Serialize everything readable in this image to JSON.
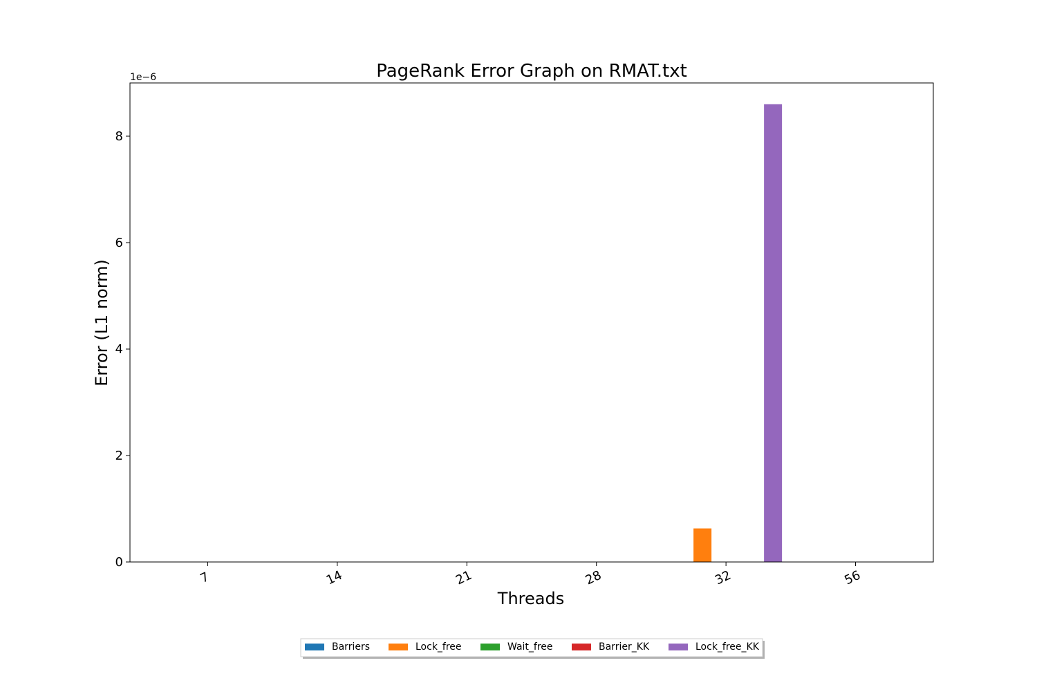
{
  "chart_data": {
    "type": "bar",
    "title": "PageRank Error Graph on RMAT.txt",
    "xlabel": "Threads",
    "ylabel": "Error (L1 norm)",
    "y_scale_label": "1e−6",
    "y_scale_factor": 1e-06,
    "categories": [
      "7",
      "14",
      "21",
      "28",
      "32",
      "56"
    ],
    "ylim": [
      0,
      9.0
    ],
    "yticks": [
      0,
      2,
      4,
      6,
      8
    ],
    "grid": false,
    "legend_position": "bottom-center",
    "series": [
      {
        "name": "Barriers",
        "color": "#1f77b4",
        "values": [
          0,
          0,
          0,
          0,
          0,
          0
        ]
      },
      {
        "name": "Lock_free",
        "color": "#ff7f0e",
        "values": [
          0,
          0,
          0,
          0,
          0.63,
          0
        ]
      },
      {
        "name": "Wait_free",
        "color": "#2ca02c",
        "values": [
          0,
          0,
          0,
          0,
          0,
          0
        ]
      },
      {
        "name": "Barrier_KK",
        "color": "#d62728",
        "values": [
          0,
          0,
          0,
          0,
          0,
          0
        ]
      },
      {
        "name": "Lock_free_KK",
        "color": "#9467bd",
        "values": [
          0,
          0,
          0,
          0,
          8.6,
          0
        ]
      }
    ]
  }
}
